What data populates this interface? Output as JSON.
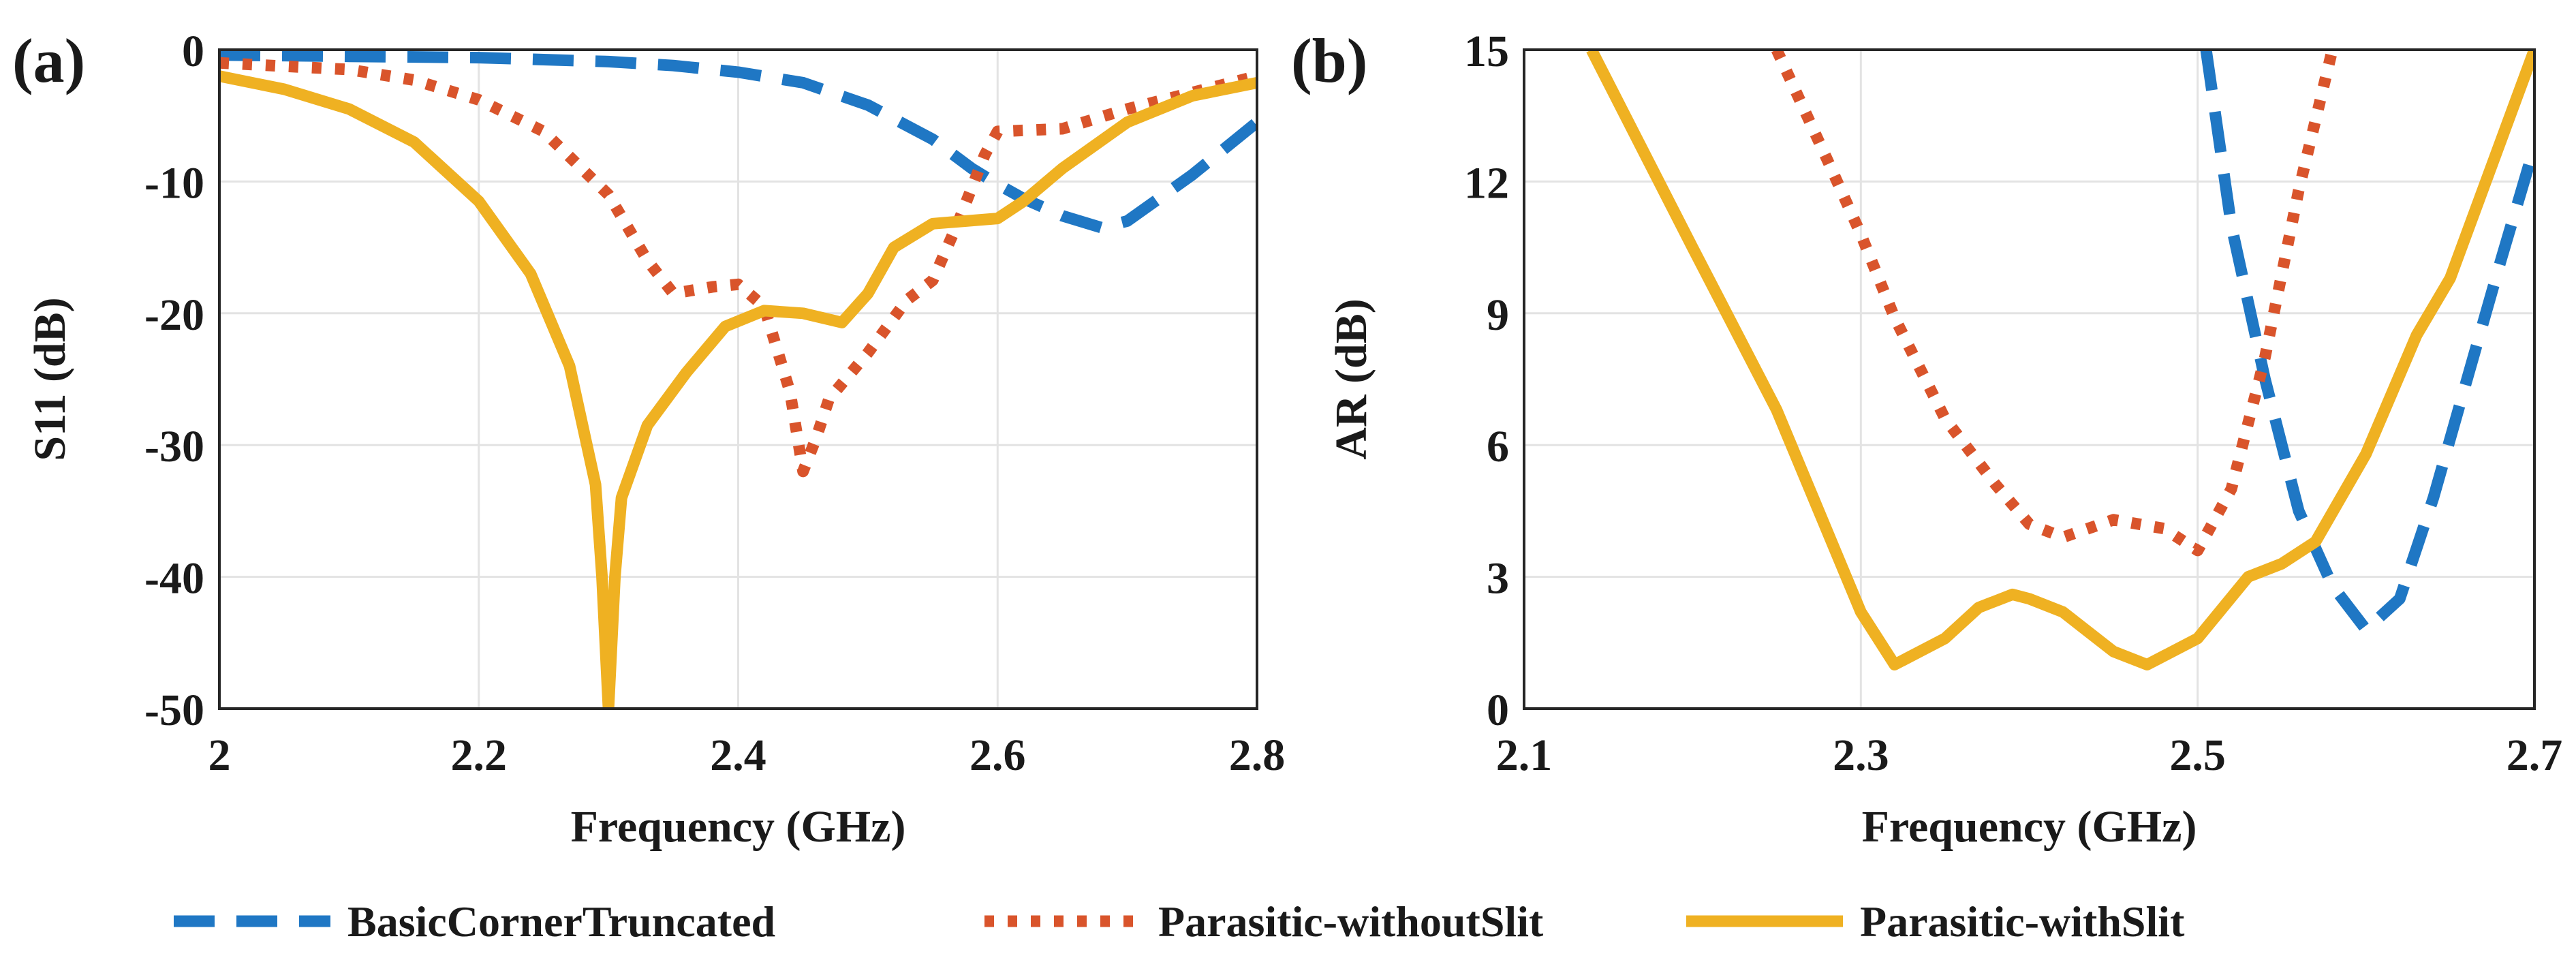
{
  "colors": {
    "BasicCornerTruncated": "#1f77c4",
    "Parasitic-withoutSlit": "#d9542b",
    "Parasitic-withSlit": "#efb122"
  },
  "legend": [
    {
      "name": "BasicCornerTruncated",
      "style": "dashed"
    },
    {
      "name": "Parasitic-withoutSlit",
      "style": "dotted"
    },
    {
      "name": "Parasitic-withSlit",
      "style": "solid"
    }
  ],
  "chart_data": [
    {
      "panel": "(a)",
      "type": "line",
      "xlabel": "Frequency (GHz)",
      "ylabel": "S11 (dB)",
      "xlim": [
        2.0,
        2.8
      ],
      "ylim": [
        -50,
        0
      ],
      "xticks": [
        2.0,
        2.2,
        2.4,
        2.6,
        2.8
      ],
      "xtick_labels": [
        "2",
        "2.2",
        "2.4",
        "2.6",
        "2.8"
      ],
      "yticks": [
        0,
        -10,
        -20,
        -30,
        -40,
        -50
      ],
      "ytick_labels": [
        "0",
        "-10",
        "-20",
        "-30",
        "-40",
        "-50"
      ],
      "grid": true,
      "series": [
        {
          "name": "BasicCornerTruncated",
          "x": [
            2.0,
            2.1,
            2.2,
            2.3,
            2.35,
            2.4,
            2.45,
            2.5,
            2.55,
            2.58,
            2.6,
            2.62,
            2.65,
            2.68,
            2.7,
            2.75,
            2.8
          ],
          "y": [
            -0.4,
            -0.5,
            -0.6,
            -0.9,
            -1.2,
            -1.7,
            -2.5,
            -4.2,
            -6.8,
            -9.0,
            -10.2,
            -11.3,
            -12.6,
            -13.5,
            -13.0,
            -9.5,
            -5.5
          ]
        },
        {
          "name": "Parasitic-withoutSlit",
          "x": [
            2.0,
            2.1,
            2.15,
            2.2,
            2.25,
            2.3,
            2.33,
            2.35,
            2.38,
            2.4,
            2.42,
            2.44,
            2.45,
            2.46,
            2.47,
            2.5,
            2.53,
            2.55,
            2.57,
            2.59,
            2.6,
            2.65,
            2.7,
            2.8
          ],
          "y": [
            -1.0,
            -1.5,
            -2.3,
            -3.8,
            -6.2,
            -11.0,
            -16.0,
            -18.5,
            -18.0,
            -17.8,
            -19.5,
            -26.0,
            -32.0,
            -29.5,
            -26.5,
            -23.0,
            -19.0,
            -17.5,
            -13.0,
            -8.0,
            -6.2,
            -6.0,
            -4.5,
            -2.0
          ]
        },
        {
          "name": "Parasitic-withSlit",
          "x": [
            2.0,
            2.05,
            2.1,
            2.15,
            2.2,
            2.24,
            2.27,
            2.29,
            2.295,
            2.3,
            2.305,
            2.31,
            2.33,
            2.36,
            2.39,
            2.42,
            2.45,
            2.48,
            2.5,
            2.52,
            2.55,
            2.6,
            2.62,
            2.65,
            2.7,
            2.75,
            2.8
          ],
          "y": [
            -2.0,
            -3.0,
            -4.5,
            -7.0,
            -11.5,
            -17.0,
            -24.0,
            -33.0,
            -40.0,
            -50.0,
            -40.0,
            -34.0,
            -28.5,
            -24.5,
            -21.0,
            -19.8,
            -20.0,
            -20.7,
            -18.5,
            -15.0,
            -13.2,
            -12.8,
            -11.5,
            -9.0,
            -5.5,
            -3.5,
            -2.5
          ]
        }
      ]
    },
    {
      "panel": "(b)",
      "type": "line",
      "xlabel": "Frequency (GHz)",
      "ylabel": "AR (dB)",
      "xlim": [
        2.1,
        2.7
      ],
      "ylim": [
        0,
        15
      ],
      "xticks": [
        2.1,
        2.3,
        2.5,
        2.7
      ],
      "xtick_labels": [
        "2.1",
        "2.3",
        "2.5",
        "2.7"
      ],
      "yticks": [
        0,
        3,
        6,
        9,
        12,
        15
      ],
      "ytick_labels": [
        "0",
        "3",
        "6",
        "9",
        "12",
        "15"
      ],
      "grid": true,
      "series": [
        {
          "name": "BasicCornerTruncated",
          "x": [
            2.505,
            2.52,
            2.54,
            2.56,
            2.58,
            2.6,
            2.62,
            2.64,
            2.66,
            2.68,
            2.7
          ],
          "y": [
            15.0,
            11.0,
            7.5,
            4.5,
            2.8,
            1.8,
            2.5,
            4.8,
            7.5,
            10.2,
            12.8
          ]
        },
        {
          "name": "Parasitic-withoutSlit",
          "x": [
            2.25,
            2.28,
            2.3,
            2.32,
            2.35,
            2.38,
            2.4,
            2.42,
            2.45,
            2.48,
            2.5,
            2.52,
            2.54,
            2.56,
            2.58
          ],
          "y": [
            15.0,
            12.5,
            10.8,
            8.9,
            6.6,
            5.1,
            4.2,
            3.9,
            4.3,
            4.1,
            3.6,
            5.0,
            8.0,
            11.8,
            15.0
          ]
        },
        {
          "name": "Parasitic-withSlit",
          "x": [
            2.14,
            2.2,
            2.25,
            2.3,
            2.32,
            2.35,
            2.37,
            2.39,
            2.4,
            2.42,
            2.45,
            2.47,
            2.5,
            2.53,
            2.55,
            2.57,
            2.6,
            2.63,
            2.65,
            2.7
          ],
          "y": [
            15.0,
            10.5,
            6.8,
            2.2,
            1.0,
            1.6,
            2.3,
            2.6,
            2.5,
            2.2,
            1.3,
            1.0,
            1.6,
            3.0,
            3.3,
            3.8,
            5.8,
            8.5,
            9.8,
            15.0
          ]
        }
      ]
    }
  ]
}
